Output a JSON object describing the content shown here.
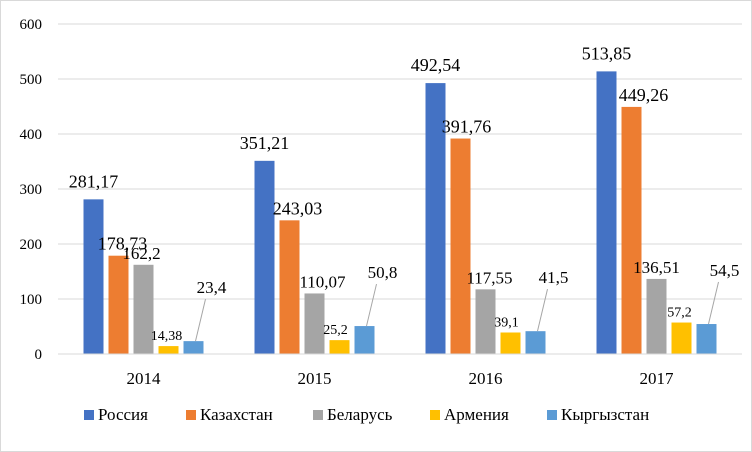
{
  "chart_data": {
    "type": "bar",
    "categories": [
      "2014",
      "2015",
      "2016",
      "2017"
    ],
    "series": [
      {
        "name": "Россия",
        "color": "#4472C4",
        "values": [
          281.17,
          351.21,
          492.54,
          513.85
        ],
        "labels": [
          "281,17",
          "351,21",
          "492,54",
          "513,85"
        ]
      },
      {
        "name": "Казахстан",
        "color": "#ED7D31",
        "values": [
          178.73,
          243.03,
          391.76,
          449.26
        ],
        "labels": [
          "178,73",
          "243,03",
          "391,76",
          "449,26"
        ]
      },
      {
        "name": "Беларусь",
        "color": "#A5A5A5",
        "values": [
          162.2,
          110.07,
          117.55,
          136.51
        ],
        "labels": [
          "162,2",
          "110,07",
          "117,55",
          "136,51"
        ]
      },
      {
        "name": "Армения",
        "color": "#FFC000",
        "values": [
          14.38,
          25.2,
          39.1,
          57.2
        ],
        "labels": [
          "14,38",
          "25,2",
          "39,1",
          "57,2"
        ]
      },
      {
        "name": "Кыргызстан",
        "color": "#5B9BD5",
        "values": [
          23.4,
          50.8,
          41.5,
          54.5
        ],
        "labels": [
          "23,4",
          "50,8",
          "41,5",
          "54,5"
        ]
      }
    ],
    "yticks": [
      "0",
      "100",
      "200",
      "300",
      "400",
      "500",
      "600"
    ],
    "ylim": [
      0,
      600
    ],
    "grid": true,
    "legend": "bottom",
    "title": "",
    "xlabel": "",
    "ylabel": ""
  }
}
